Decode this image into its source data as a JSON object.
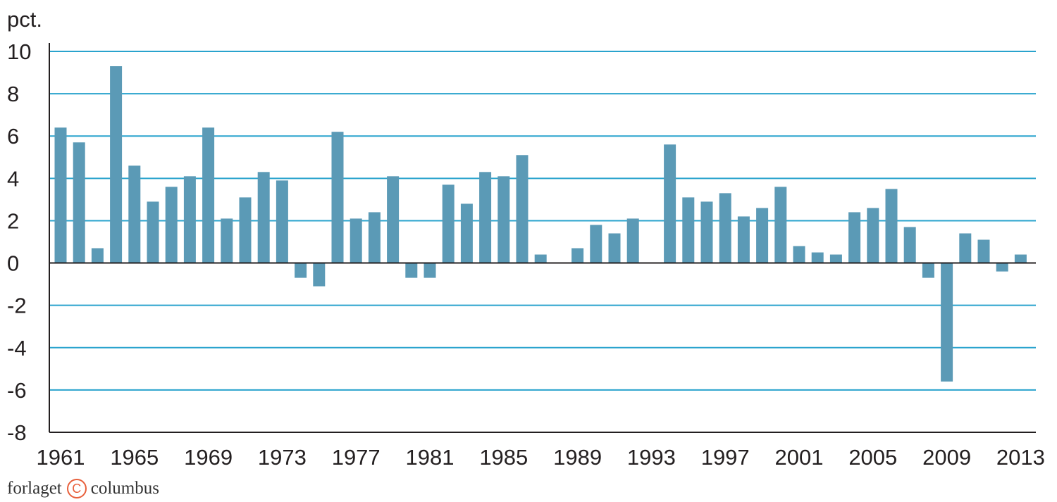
{
  "chart_data": {
    "type": "bar",
    "ylabel": "pct.",
    "xlabel": "",
    "ylim": [
      -8,
      10
    ],
    "yticks": [
      10,
      8,
      6,
      4,
      2,
      0,
      -2,
      -4,
      -6,
      -8
    ],
    "grid": true,
    "bar_color": "#5b9ab6",
    "grid_color": "#29a3cd",
    "axis_color": "#231f20",
    "categories": [
      1961,
      1962,
      1963,
      1964,
      1965,
      1966,
      1967,
      1968,
      1969,
      1970,
      1971,
      1972,
      1973,
      1974,
      1975,
      1976,
      1977,
      1978,
      1979,
      1980,
      1981,
      1982,
      1983,
      1984,
      1985,
      1986,
      1987,
      1988,
      1989,
      1990,
      1991,
      1992,
      1993,
      1994,
      1995,
      1996,
      1997,
      1998,
      1999,
      2000,
      2001,
      2002,
      2003,
      2004,
      2005,
      2006,
      2007,
      2008,
      2009,
      2010,
      2011,
      2012,
      2013
    ],
    "xtick_labels": [
      "1961",
      "1965",
      "1969",
      "1973",
      "1977",
      "1981",
      "1985",
      "1989",
      "1993",
      "1997",
      "2001",
      "2005",
      "2009",
      "2013"
    ],
    "values": [
      6.4,
      5.7,
      0.7,
      9.3,
      4.6,
      2.9,
      3.6,
      4.1,
      6.4,
      2.1,
      3.1,
      4.3,
      3.9,
      -0.7,
      -1.1,
      6.2,
      2.1,
      2.4,
      4.1,
      -0.7,
      -0.7,
      3.7,
      2.8,
      4.3,
      4.1,
      5.1,
      0.4,
      0.0,
      0.7,
      1.8,
      1.4,
      2.1,
      0.0,
      5.6,
      3.1,
      2.9,
      3.3,
      2.2,
      2.6,
      3.6,
      0.8,
      0.5,
      0.4,
      2.4,
      2.6,
      3.5,
      1.7,
      -0.7,
      -5.6,
      1.4,
      1.1,
      -0.4,
      0.4
    ]
  },
  "footer": {
    "brand_left": "forlaget",
    "brand_mark": "C",
    "brand_right": "columbus",
    "brand_color": "#e8603c"
  }
}
